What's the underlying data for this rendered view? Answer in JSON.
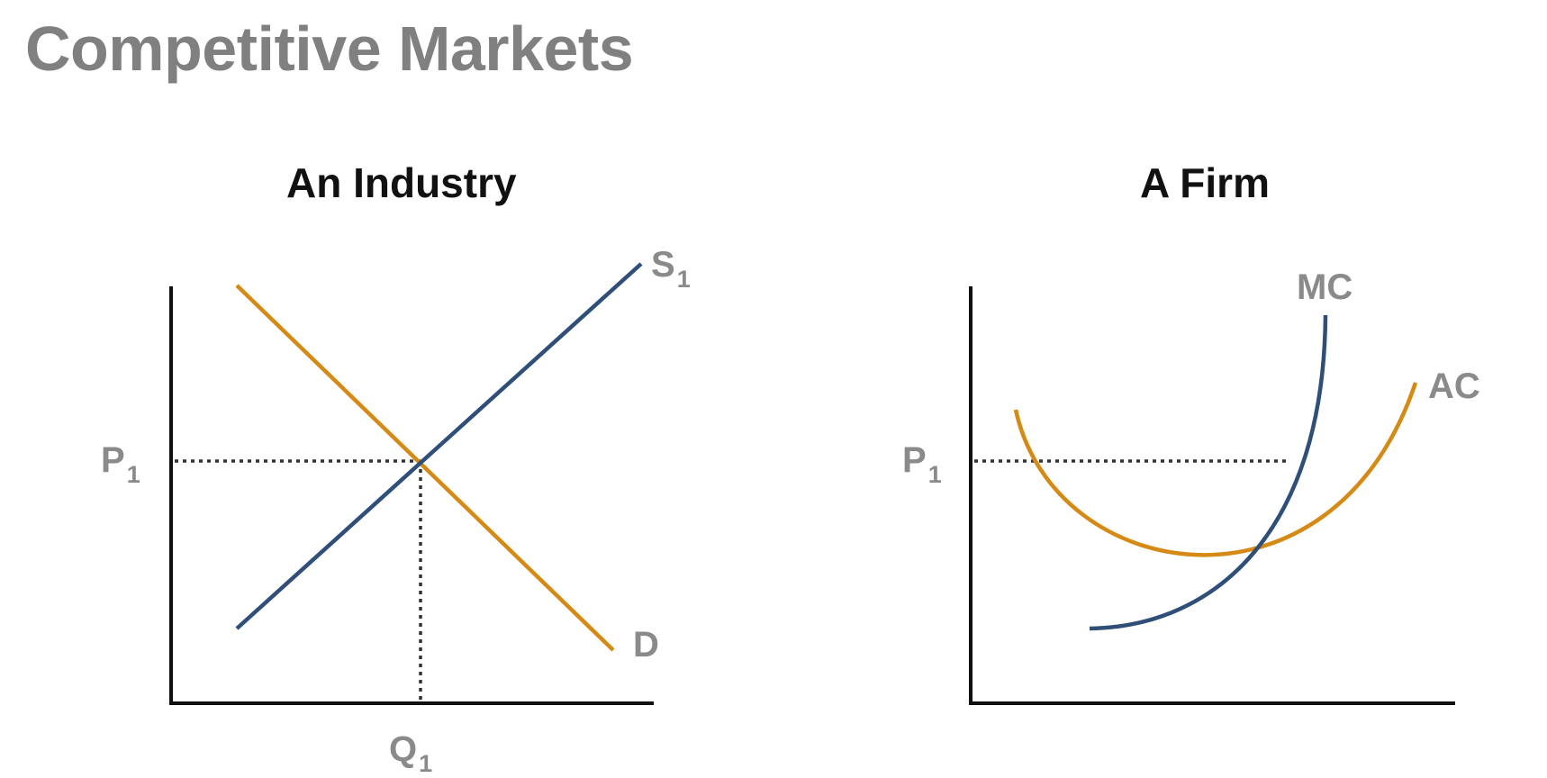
{
  "slide": {
    "title": "Competitive Markets"
  },
  "industry": {
    "title": "An Industry",
    "price_label": {
      "main": "P",
      "sub": "1"
    },
    "quantity_label": {
      "main": "Q",
      "sub": "1"
    },
    "curves": [
      {
        "label_main": "S",
        "label_sub": "1",
        "color": "#2f4f78",
        "kind": "supply"
      },
      {
        "label_main": "D",
        "label_sub": "",
        "color": "#d58a15",
        "kind": "demand"
      }
    ]
  },
  "firm": {
    "title": "A Firm",
    "price_label": {
      "main": "P",
      "sub": "1"
    },
    "curves": [
      {
        "label_main": "MC",
        "color": "#2f4f78",
        "kind": "marginal-cost"
      },
      {
        "label_main": "AC",
        "color": "#d58a15",
        "kind": "average-cost"
      }
    ]
  },
  "colors": {
    "axis": "#111111",
    "label": "#8a8a8a",
    "title": "#808080",
    "guide": "#333333"
  }
}
